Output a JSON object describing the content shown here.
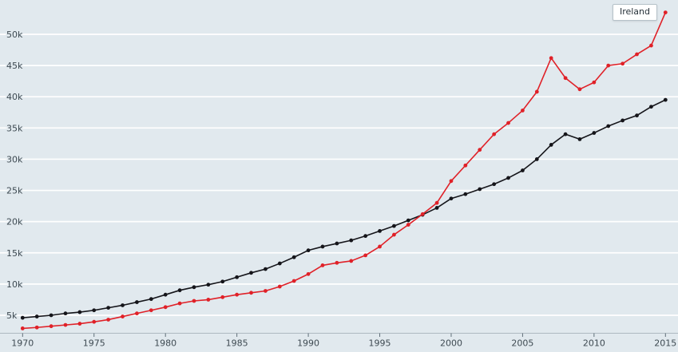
{
  "chart_data": {
    "type": "line",
    "title": "",
    "xlabel": "",
    "ylabel": "",
    "xlim": [
      1970,
      2015
    ],
    "ylim": [
      0,
      55000
    ],
    "grid": "horizontal",
    "x": [
      1970,
      1971,
      1972,
      1973,
      1974,
      1975,
      1976,
      1977,
      1978,
      1979,
      1980,
      1981,
      1982,
      1983,
      1984,
      1985,
      1986,
      1987,
      1988,
      1989,
      1990,
      1991,
      1992,
      1993,
      1994,
      1995,
      1996,
      1997,
      1998,
      1999,
      2000,
      2001,
      2002,
      2003,
      2004,
      2005,
      2006,
      2007,
      2008,
      2009,
      2010,
      2011,
      2012,
      2013,
      2014,
      2015
    ],
    "series": [
      {
        "name": "",
        "color": "#15151a",
        "marker": "circle",
        "values": [
          4600,
          4800,
          5000,
          5300,
          5500,
          5800,
          6200,
          6600,
          7100,
          7600,
          8300,
          9000,
          9500,
          9900,
          10400,
          11100,
          11800,
          12400,
          13300,
          14300,
          15400,
          16000,
          16500,
          17000,
          17700,
          18500,
          19300,
          20200,
          21100,
          22200,
          23700,
          24400,
          25200,
          26000,
          27000,
          28200,
          30000,
          32300,
          34000,
          33200,
          34200,
          35300,
          36200,
          37000,
          38400,
          39500
        ]
      },
      {
        "name": "Ireland",
        "color": "#e02128",
        "marker": "circle",
        "values": [
          2900,
          3050,
          3250,
          3450,
          3650,
          3950,
          4300,
          4800,
          5300,
          5800,
          6300,
          6900,
          7300,
          7500,
          7900,
          8300,
          8600,
          8900,
          9600,
          10500,
          11600,
          13000,
          13400,
          13700,
          14600,
          16000,
          17900,
          19500,
          21200,
          23000,
          26500,
          29000,
          31500,
          34000,
          35800,
          37800,
          40800,
          46200,
          43000,
          41200,
          42300,
          45000,
          45300,
          46800,
          48200,
          53500
        ]
      }
    ],
    "xticks": [
      1970,
      1975,
      1980,
      1985,
      1990,
      1995,
      2000,
      2005,
      2010,
      2015
    ],
    "xtick_labels": [
      "1970",
      "1975",
      "1980",
      "1985",
      "1990",
      "1995",
      "2000",
      "2005",
      "2010",
      "2015"
    ],
    "yticks": [
      5000,
      10000,
      15000,
      20000,
      25000,
      30000,
      35000,
      40000,
      45000,
      50000
    ],
    "ytick_labels": [
      "5k",
      "10k",
      "15k",
      "20k",
      "25k",
      "30k",
      "35k",
      "40k",
      "45k",
      "50k"
    ],
    "legend": {
      "label": "Ireland",
      "position": "top-right"
    },
    "style": {
      "background": "#e1e9ee",
      "grid_color": "#ffffff",
      "text_color": "#3e4a52",
      "axis_line_color": "#aeb9c1",
      "tick_color": "#5f6e78"
    }
  }
}
